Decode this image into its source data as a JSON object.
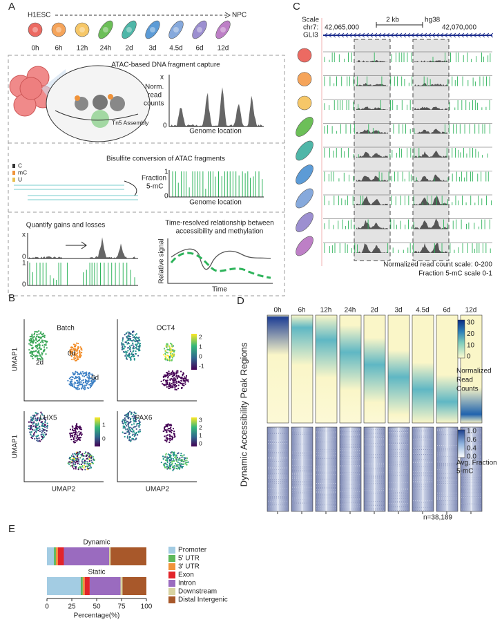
{
  "panels": {
    "A": {
      "label": "A",
      "start": "H1ESC",
      "end": "NPC",
      "timepoints": [
        "0h",
        "6h",
        "12h",
        "24h",
        "2d",
        "3d",
        "4.5d",
        "6d",
        "12d"
      ],
      "step1": {
        "title": "ATAC-based DNA fragment capture",
        "enzyme": "Tn5 Assembly",
        "y_axis": [
          "Norm.",
          "read",
          "counts"
        ],
        "y_max": "x",
        "y_min": "0",
        "x_axis": "Genome location"
      },
      "step2": {
        "title": "Bisulfite conversion of ATAC fragments",
        "legend": [
          "C",
          "mC",
          "U"
        ],
        "y_axis": [
          "Fraction",
          "5-mC"
        ],
        "y_max": "1",
        "y_min": "0",
        "x_axis": "Genome location"
      },
      "step3": {
        "title": "Quantify gains and losses",
        "top_max": "x",
        "top_min": "0",
        "bottom_max": "1",
        "bottom_min": "0"
      },
      "step4": {
        "title": [
          "Time-resolved relationship between",
          "accessibility and methylation"
        ],
        "y_axis": "Relative signal",
        "x_axis": "Time"
      }
    },
    "B": {
      "label": "B",
      "plots": [
        "Batch",
        "OCT4",
        "LHX5",
        "PAX6"
      ],
      "clusters": [
        "2d",
        "0d",
        "6d"
      ],
      "y_axis": "UMAP1",
      "x_axis": "UMAP2",
      "oct4_ticks": [
        "2",
        "1",
        "0",
        "-1"
      ],
      "lhx5_ticks": [
        "1",
        "0"
      ],
      "pax6_ticks": [
        "3",
        "2",
        "1",
        "0"
      ]
    },
    "C": {
      "label": "C",
      "scale": "Scale",
      "chrom": "chr7:",
      "gene": "GLI3",
      "scale_bar": "2 kb",
      "assembly": "hg38",
      "coord_left": "42,065,000",
      "coord_right": "42,070,000",
      "notes": [
        "Normalized read count scale: 0-200",
        "Fraction 5-mC scale 0-1"
      ]
    },
    "D": {
      "label": "D",
      "timepoints": [
        "0h",
        "6h",
        "12h",
        "24h",
        "2d",
        "3d",
        "4.5d",
        "6d",
        "12d"
      ],
      "y_axis": "Dynamic Accessibility Peak Regions",
      "cbar1_ticks": [
        "30",
        "20",
        "10",
        "0"
      ],
      "cbar1_label": [
        "Normalized",
        "Read",
        "Counts"
      ],
      "cbar2_ticks": [
        "1.0",
        "0.6",
        "0.4",
        "0.0"
      ],
      "cbar2_label": [
        "Avg. Fraction",
        "5-mC"
      ],
      "n": "n=38,189"
    },
    "E": {
      "label": "E"
    }
  },
  "chart_data": {
    "type": "stacked-barh",
    "categories": [
      "Dynamic",
      "Static"
    ],
    "x_label": "Percentage(%)",
    "xlim": [
      0,
      100
    ],
    "xticks": [
      0,
      25,
      50,
      75,
      100
    ],
    "series": [
      {
        "name": "Promoter",
        "color": "#a3cce3",
        "values": [
          7,
          34
        ]
      },
      {
        "name": "5' UTR",
        "color": "#5db85a",
        "values": [
          2,
          2
        ]
      },
      {
        "name": "3' UTR",
        "color": "#f0933a",
        "values": [
          2,
          2
        ]
      },
      {
        "name": "Exon",
        "color": "#e2242a",
        "values": [
          6,
          5
        ]
      },
      {
        "name": "Intron",
        "color": "#9a6bbf",
        "values": [
          45.5,
          31
        ]
      },
      {
        "name": "Downstream",
        "color": "#d8d3a0",
        "values": [
          1.5,
          2
        ]
      },
      {
        "name": "Distal Intergenic",
        "color": "#a8582a",
        "values": [
          36,
          24
        ]
      }
    ]
  }
}
